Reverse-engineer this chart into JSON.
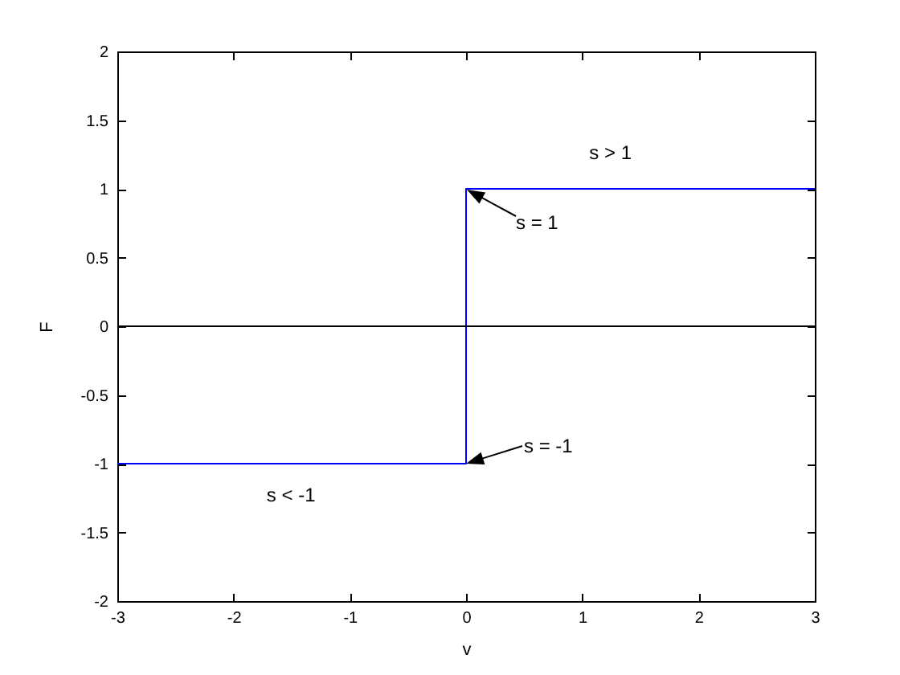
{
  "chart_data": {
    "type": "line",
    "xlabel": "v",
    "ylabel": "F",
    "x": [
      -3,
      0,
      0,
      3
    ],
    "series": [
      {
        "color": "#0000ff",
        "values": [
          -1,
          -1,
          1,
          1
        ]
      }
    ],
    "xlim": [
      -3,
      3
    ],
    "ylim": [
      -2,
      2
    ],
    "xticks": [
      -3,
      -2,
      -1,
      0,
      1,
      2,
      3
    ],
    "yticks": [
      -2,
      -1.5,
      -1,
      -0.5,
      0,
      0.5,
      1,
      1.5,
      2
    ],
    "ref_lines": [
      {
        "axis": "y",
        "value": 0,
        "color": "#000000"
      }
    ],
    "annotations": [
      "s > 1",
      {
        "text": "s = 1",
        "x": 0,
        "y": 1
      },
      {
        "text": "s = -1",
        "x": 0,
        "y": -1
      },
      "s < -1"
    ]
  }
}
